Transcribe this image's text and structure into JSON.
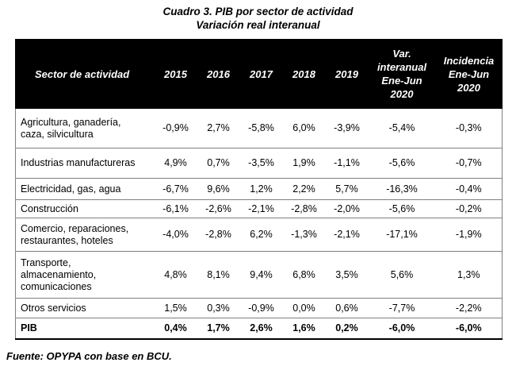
{
  "title": "Cuadro 3. PIB por sector de actividad",
  "subtitle": "Variación real interanual",
  "headers": {
    "sector": "Sector de actividad",
    "y2015": "2015",
    "y2016": "2016",
    "y2017": "2017",
    "y2018": "2018",
    "y2019": "2019",
    "var_l1": "Var.",
    "var_l2": "interanual",
    "var_l3": "Ene-Jun",
    "var_l4": "2020",
    "inc_l1": "Incidencia",
    "inc_l2": "Ene-Jun",
    "inc_l3": "2020"
  },
  "rows": [
    {
      "l1": "Agricultura, ganadería,",
      "l2": "caza, silvicultura",
      "l3": "",
      "v": [
        "-0,9%",
        "2,7%",
        "-5,8%",
        "6,0%",
        "-3,9%",
        "-5,4%",
        "-0,3%"
      ]
    },
    {
      "l1": "Industrias manufactureras",
      "l2": "",
      "l3": "",
      "v": [
        "4,9%",
        "0,7%",
        "-3,5%",
        "1,9%",
        "-1,1%",
        "-5,6%",
        "-0,7%"
      ]
    },
    {
      "l1": "Electricidad, gas, agua",
      "l2": "",
      "l3": "",
      "v": [
        "-6,7%",
        "9,6%",
        "1,2%",
        "2,2%",
        "5,7%",
        "-16,3%",
        "-0,4%"
      ]
    },
    {
      "l1": "Construcción",
      "l2": "",
      "l3": "",
      "v": [
        "-6,1%",
        "-2,6%",
        "-2,1%",
        "-2,8%",
        "-2,0%",
        "-5,6%",
        "-0,2%"
      ]
    },
    {
      "l1": "Comercio, reparaciones,",
      "l2": "restaurantes, hoteles",
      "l3": "",
      "v": [
        "-4,0%",
        "-2,8%",
        "6,2%",
        "-1,3%",
        "-2,1%",
        "-17,1%",
        "-1,9%"
      ]
    },
    {
      "l1": "Transporte,",
      "l2": "almacenamiento,",
      "l3": "comunicaciones",
      "v": [
        "4,8%",
        "8,1%",
        "9,4%",
        "6,8%",
        "3,5%",
        "5,6%",
        "1,3%"
      ]
    },
    {
      "l1": "Otros servicios",
      "l2": "",
      "l3": "",
      "v": [
        "1,5%",
        "0,3%",
        "-0,9%",
        "0,0%",
        "0,6%",
        "-7,7%",
        "-2,2%"
      ]
    },
    {
      "l1": "PIB",
      "l2": "",
      "l3": "",
      "v": [
        "0,4%",
        "1,7%",
        "2,6%",
        "1,6%",
        "0,2%",
        "-6,0%",
        "-6,0%"
      ]
    }
  ],
  "source": "Fuente: OPYPA con base en BCU."
}
